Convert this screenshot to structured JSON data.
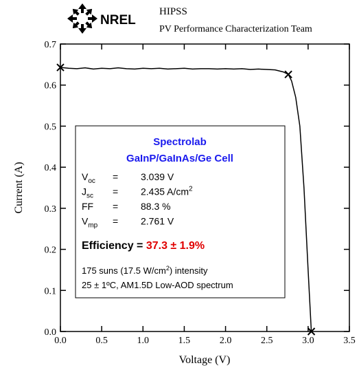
{
  "header": {
    "logo": "NREL",
    "title": "HIPSS",
    "subtitle": "PV Performance Characterization Team"
  },
  "chart_data": {
    "type": "line",
    "color": "#000000",
    "x_label": "Voltage (V)",
    "y_label": "Current (A)",
    "x": [
      0,
      0.1,
      0.2,
      0.3,
      0.4,
      0.5,
      0.6,
      0.7,
      0.8,
      0.9,
      1.0,
      1.1,
      1.2,
      1.3,
      1.4,
      1.5,
      1.6,
      1.7,
      1.8,
      1.9,
      2.0,
      2.1,
      2.2,
      2.3,
      2.4,
      2.5,
      2.6,
      2.7,
      2.761,
      2.8,
      2.85,
      2.9,
      2.95,
      3.0,
      3.039
    ],
    "values": [
      0.643,
      0.641,
      0.64,
      0.642,
      0.639,
      0.641,
      0.64,
      0.642,
      0.64,
      0.639,
      0.641,
      0.64,
      0.641,
      0.639,
      0.64,
      0.641,
      0.639,
      0.64,
      0.64,
      0.639,
      0.64,
      0.639,
      0.64,
      0.638,
      0.639,
      0.638,
      0.637,
      0.632,
      0.626,
      0.61,
      0.57,
      0.5,
      0.35,
      0.15,
      0
    ],
    "markers": {
      "x": [
        0,
        2.761,
        3.039
      ],
      "values": [
        0.643,
        0.626,
        0
      ]
    },
    "xlim": [
      0,
      3.5
    ],
    "ylim": [
      0,
      0.7
    ],
    "xticks": [
      {
        "value": 0,
        "label": "0.0"
      },
      {
        "value": 0.5,
        "label": "0.5"
      },
      {
        "value": 1,
        "label": "1.0"
      },
      {
        "value": 1.5,
        "label": "1.5"
      },
      {
        "value": 2,
        "label": "2.0"
      },
      {
        "value": 2.5,
        "label": "2.5"
      },
      {
        "value": 3,
        "label": "3.0"
      },
      {
        "value": 3.5,
        "label": "3.5"
      }
    ],
    "yticks": [
      {
        "value": 0,
        "label": "0.0"
      },
      {
        "value": 0.1,
        "label": "0.1"
      },
      {
        "value": 0.2,
        "label": "0.2"
      },
      {
        "value": 0.3,
        "label": "0.3"
      },
      {
        "value": 0.4,
        "label": "0.4"
      },
      {
        "value": 0.5,
        "label": "0.5"
      },
      {
        "value": 0.6,
        "label": "0.6"
      },
      {
        "value": 0.7,
        "label": "0.7"
      }
    ],
    "box": {
      "title1": "Spectrolab",
      "title2": "GaInP/GaInAs/Ge Cell",
      "rows": [
        {
          "sym": "V",
          "sub": "oc",
          "eq": "=",
          "val": "3.039 V"
        },
        {
          "sym": "J",
          "sub": "sc",
          "eq": "=",
          "val": "2.435 A/cm",
          "sup": "2"
        },
        {
          "sym": "FF",
          "eq": "=",
          "val": "88.3 %"
        },
        {
          "sym": "V",
          "sub": "mp",
          "eq": "=",
          "val": "2.761 V"
        }
      ],
      "eff_label": "Efficiency = ",
      "eff_value": "37.3 ± 1.9%",
      "line1a": "175 suns (17.5 W/cm",
      "line1sup": "2",
      "line1b": ") intensity",
      "line2": "25 ± 1ºC, AM1.5D Low-AOD spectrum"
    }
  }
}
